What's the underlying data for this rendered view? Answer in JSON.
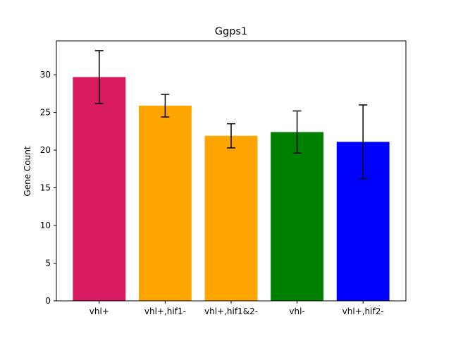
{
  "chart_data": {
    "type": "bar",
    "title": "Ggps1",
    "xlabel": "",
    "ylabel": "Gene Count",
    "categories": [
      "vhl+",
      "vhl+,hif1-",
      "vhl+,hif1&2-",
      "vhl-",
      "vhl+,hif2-"
    ],
    "values": [
      29.7,
      25.9,
      21.9,
      22.4,
      21.1
    ],
    "errors": [
      3.5,
      1.5,
      1.6,
      2.8,
      4.9
    ],
    "colors": [
      "#d81b60",
      "#ffa500",
      "#ffa500",
      "#008000",
      "#0000ff"
    ],
    "ylim": [
      0,
      34.5
    ],
    "yticks": [
      0,
      5,
      10,
      15,
      20,
      25,
      30
    ],
    "grid": false,
    "legend": "none"
  }
}
